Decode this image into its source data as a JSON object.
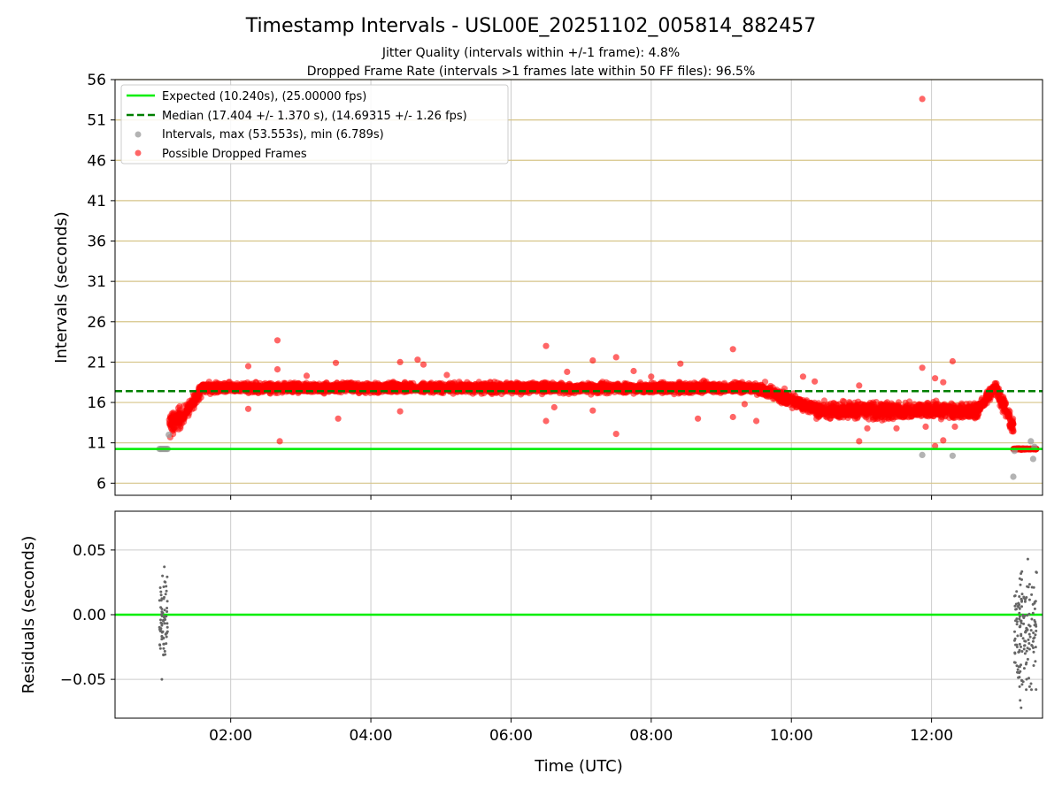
{
  "figure": {
    "title": "Timestamp Intervals - USL00E_20251102_005814_882457",
    "subtitle_1": "Jitter Quality (intervals within +/-1 frame): 4.8%",
    "subtitle_2": "Dropped Frame Rate (intervals >1 frames late within 50 FF files): 96.5%",
    "colors": {
      "expected": "#00ee00",
      "median": "#007f00",
      "intervals": "#999999",
      "dropped": "#ff0000",
      "hgrid": "#d6c488",
      "vgrid": "#cccccc",
      "residuals": "#666666"
    }
  },
  "chart_data": [
    {
      "type": "scatter",
      "panel": "intervals",
      "ylabel": "Intervals (seconds)",
      "ylim": [
        4.5,
        56
      ],
      "xlim": [
        "00:21",
        "13:35"
      ],
      "yticks": [
        6,
        11,
        16,
        21,
        26,
        31,
        36,
        41,
        46,
        51,
        56
      ],
      "yticks_labels": [
        "6",
        "11",
        "16",
        "21",
        "26",
        "31",
        "36",
        "41",
        "46",
        "51",
        "56"
      ],
      "grid": true,
      "legend_placement": "upper-left",
      "legend": [
        "Expected (10.240s), (25.00000 fps)",
        "Median (17.404 +/- 1.370 s), (14.69315 +/- 1.26 fps)",
        "Intervals, max (53.553s), min (6.789s)",
        "Possible Dropped Frames"
      ],
      "reference_lines": {
        "expected": 10.24,
        "median": 17.404
      },
      "series": [
        {
          "name": "Possible Dropped Frames",
          "segments": [
            {
              "x": [
                "01:07",
                "01:20"
              ],
              "y_start": 13.0,
              "y_end": 14.5,
              "spread": 1.0
            },
            {
              "x": [
                "01:20",
                "01:36"
              ],
              "y_start": 14.5,
              "y_end": 17.8,
              "spread": 0.6
            },
            {
              "x": [
                "01:36",
                "09:30"
              ],
              "y_start": 17.8,
              "y_end": 17.8,
              "spread": 0.45
            },
            {
              "x": [
                "09:30",
                "10:20"
              ],
              "y_start": 17.8,
              "y_end": 15.3,
              "spread": 0.6
            },
            {
              "x": [
                "10:20",
                "12:40"
              ],
              "y_start": 15.0,
              "y_end": 15.0,
              "spread": 0.7
            },
            {
              "x": [
                "12:40",
                "12:55"
              ],
              "y_start": 15.2,
              "y_end": 18.0,
              "spread": 0.5
            },
            {
              "x": [
                "12:55",
                "13:10"
              ],
              "y_start": 17.8,
              "y_end": 13.0,
              "spread": 0.8
            },
            {
              "x": [
                "13:10",
                "13:30"
              ],
              "y_start": 10.24,
              "y_end": 10.24,
              "spread": 0.05
            }
          ],
          "outliers": [
            [
              "02:15",
              20.5
            ],
            [
              "02:15",
              15.2
            ],
            [
              "02:40",
              23.7
            ],
            [
              "02:40",
              20.1
            ],
            [
              "02:42",
              11.2
            ],
            [
              "03:05",
              19.3
            ],
            [
              "03:30",
              20.9
            ],
            [
              "03:32",
              14.0
            ],
            [
              "04:25",
              21.0
            ],
            [
              "04:25",
              14.9
            ],
            [
              "04:40",
              21.3
            ],
            [
              "04:45",
              20.7
            ],
            [
              "05:05",
              19.4
            ],
            [
              "06:30",
              23.0
            ],
            [
              "06:30",
              13.7
            ],
            [
              "06:37",
              15.4
            ],
            [
              "06:48",
              19.8
            ],
            [
              "07:10",
              21.2
            ],
            [
              "07:10",
              15.0
            ],
            [
              "07:30",
              21.6
            ],
            [
              "07:30",
              12.1
            ],
            [
              "07:45",
              19.9
            ],
            [
              "08:00",
              19.2
            ],
            [
              "08:25",
              20.8
            ],
            [
              "08:40",
              14.0
            ],
            [
              "08:45",
              18.7
            ],
            [
              "08:52",
              17.6
            ],
            [
              "09:10",
              22.6
            ],
            [
              "09:10",
              14.2
            ],
            [
              "09:20",
              15.8
            ],
            [
              "09:30",
              13.7
            ],
            [
              "10:10",
              19.2
            ],
            [
              "10:20",
              18.6
            ],
            [
              "10:20",
              15.0
            ],
            [
              "10:58",
              18.1
            ],
            [
              "10:58",
              11.2
            ],
            [
              "11:05",
              12.8
            ],
            [
              "11:30",
              12.8
            ],
            [
              "11:52",
              53.6
            ],
            [
              "11:52",
              20.3
            ],
            [
              "11:55",
              13.0
            ],
            [
              "12:03",
              19.0
            ],
            [
              "12:03",
              10.6
            ],
            [
              "12:10",
              18.5
            ],
            [
              "12:10",
              11.3
            ],
            [
              "12:18",
              21.1
            ],
            [
              "12:20",
              13.0
            ]
          ]
        },
        {
          "name": "Intervals",
          "points": [
            [
              "00:59",
              10.24
            ],
            [
              "01:00",
              10.24
            ],
            [
              "01:01",
              10.24
            ],
            [
              "01:02",
              10.24
            ],
            [
              "01:03",
              10.24
            ],
            [
              "01:04",
              10.24
            ],
            [
              "01:05",
              10.24
            ],
            [
              "01:06",
              10.24
            ],
            [
              "01:07",
              12.0
            ],
            [
              "11:52",
              9.5
            ],
            [
              "12:18",
              9.4
            ],
            [
              "13:10",
              6.8
            ],
            [
              "13:11",
              10.0
            ],
            [
              "13:25",
              11.2
            ],
            [
              "13:27",
              9.0
            ],
            [
              "13:28",
              10.5
            ]
          ]
        }
      ]
    },
    {
      "type": "scatter",
      "panel": "residuals",
      "xlabel": "Time (UTC)",
      "ylabel": "Residuals (seconds)",
      "ylim": [
        -0.08,
        0.08
      ],
      "yticks": [
        -0.05,
        0.0,
        0.05
      ],
      "yticks_labels": [
        "−0.05",
        "0.00",
        "0.05"
      ],
      "xticks": [
        "02:00",
        "04:00",
        "06:00",
        "08:00",
        "10:00",
        "12:00"
      ],
      "grid": true,
      "series": [
        {
          "name": "Residuals",
          "clusters": [
            {
              "x": [
                "00:59",
                "01:06"
              ],
              "y_range": [
                -0.05,
                0.037
              ]
            },
            {
              "x": [
                "13:11",
                "13:30"
              ],
              "y_range": [
                -0.072,
                0.043
              ]
            }
          ]
        }
      ]
    }
  ]
}
